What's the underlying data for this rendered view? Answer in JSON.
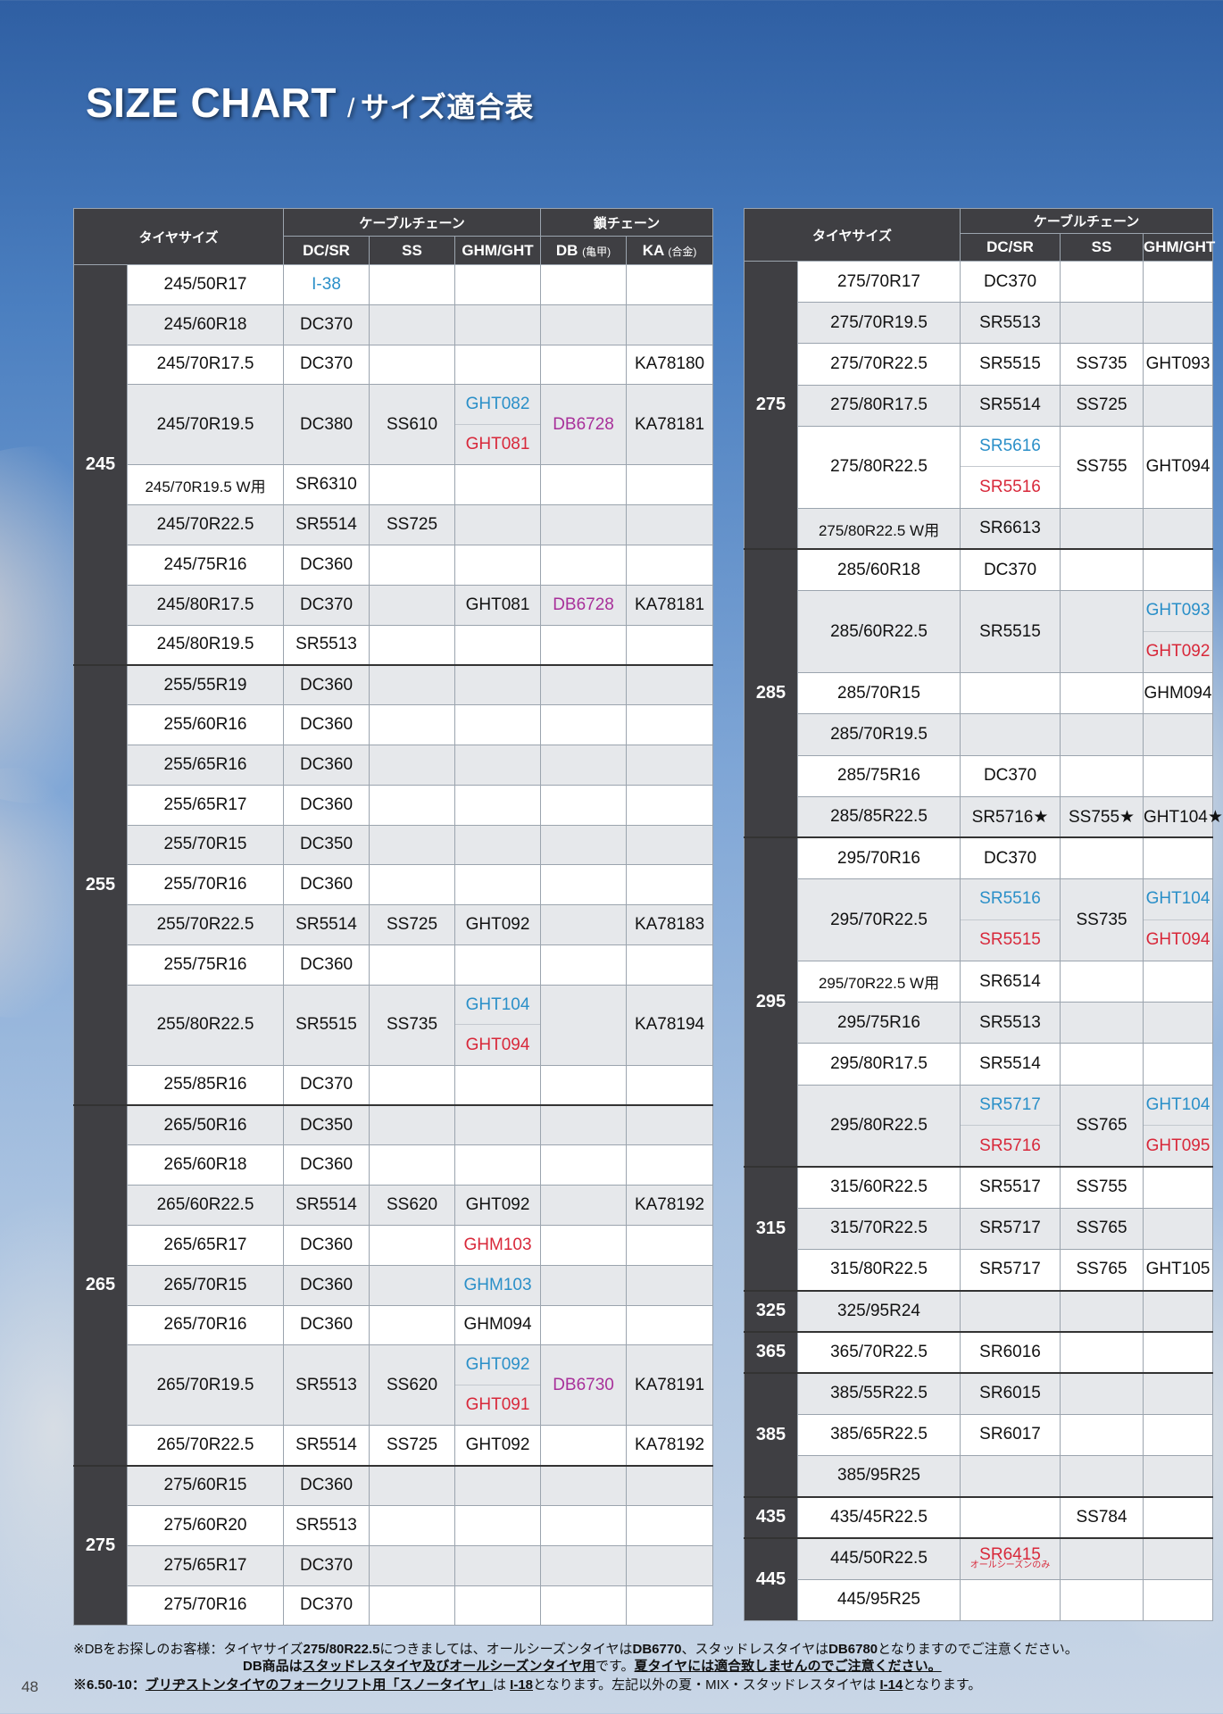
{
  "title": {
    "en": "SIZE CHART",
    "slash": "/",
    "jp": "サイズ適合表"
  },
  "left_table": {
    "header": {
      "tire_size": "タイヤサイズ",
      "cable_group": "ケーブルチェーン",
      "kusari_group": "鎖チェーン",
      "col_dcsr": "DC/SR",
      "col_ss": "SS",
      "col_ghm": "GHM/GHT",
      "col_db": "DB",
      "col_db_sub": "(亀甲)",
      "col_ka": "KA",
      "col_ka_sub": "(合金)"
    },
    "groups": [
      {
        "label": "245",
        "rows": [
          {
            "size": "245/50R17",
            "dc": "I-38"
          },
          {
            "size": "245/60R18",
            "dc": "DC370"
          },
          {
            "size": "245/70R17.5",
            "dc": "DC370",
            "ka": "KA78180"
          },
          {
            "size": "245/70R19.5",
            "dc": "DC380",
            "ss": "SS610",
            "ghm_a": "GHT082",
            "ghm_b": "GHT081",
            "db": "DB6728",
            "ka": "KA78181"
          },
          {
            "size": "245/70R19.5 W用",
            "dc": "SR6310"
          },
          {
            "size": "245/70R22.5",
            "dc": "SR5514",
            "ss": "SS725"
          },
          {
            "size": "245/75R16",
            "dc": "DC360"
          },
          {
            "size": "245/80R17.5",
            "dc": "DC370",
            "ghm": "GHT081",
            "db": "DB6728",
            "ka": "KA78181"
          },
          {
            "size": "245/80R19.5",
            "dc": "SR5513"
          }
        ]
      },
      {
        "label": "255",
        "rows": [
          {
            "size": "255/55R19",
            "dc": "DC360"
          },
          {
            "size": "255/60R16",
            "dc": "DC360"
          },
          {
            "size": "255/65R16",
            "dc": "DC360"
          },
          {
            "size": "255/65R17",
            "dc": "DC360"
          },
          {
            "size": "255/70R15",
            "dc": "DC350"
          },
          {
            "size": "255/70R16",
            "dc": "DC360"
          },
          {
            "size": "255/70R22.5",
            "dc": "SR5514",
            "ss": "SS725",
            "ghm": "GHT092",
            "ka": "KA78183"
          },
          {
            "size": "255/75R16",
            "dc": "DC360"
          },
          {
            "size": "255/80R22.5",
            "dc": "SR5515",
            "ss": "SS735",
            "ghm_a": "GHT104",
            "ghm_b": "GHT094",
            "ka": "KA78194"
          },
          {
            "size": "255/85R16",
            "dc": "DC370"
          }
        ]
      },
      {
        "label": "265",
        "rows": [
          {
            "size": "265/50R16",
            "dc": "DC350"
          },
          {
            "size": "265/60R18",
            "dc": "DC360"
          },
          {
            "size": "265/60R22.5",
            "dc": "SR5514",
            "ss": "SS620",
            "ghm": "GHT092",
            "ka": "KA78192"
          },
          {
            "size": "265/65R17",
            "dc": "DC360",
            "ghm": "GHM103"
          },
          {
            "size": "265/70R15",
            "dc": "DC360",
            "ghm": "GHM103"
          },
          {
            "size": "265/70R16",
            "dc": "DC360",
            "ghm": "GHM094"
          },
          {
            "size": "265/70R19.5",
            "dc": "SR5513",
            "ss": "SS620",
            "ghm_a": "GHT092",
            "ghm_b": "GHT091",
            "db": "DB6730",
            "ka": "KA78191"
          },
          {
            "size": "265/70R22.5",
            "dc": "SR5514",
            "ss": "SS725",
            "ghm": "GHT092",
            "ka": "KA78192"
          }
        ]
      },
      {
        "label": "275",
        "rows": [
          {
            "size": "275/60R15",
            "dc": "DC360"
          },
          {
            "size": "275/60R20",
            "dc": "SR5513"
          },
          {
            "size": "275/65R17",
            "dc": "DC370"
          },
          {
            "size": "275/70R16",
            "dc": "DC370"
          }
        ]
      }
    ]
  },
  "right_table": {
    "header": {
      "tire_size": "タイヤサイズ",
      "cable_group": "ケーブルチェーン",
      "col_dcsr": "DC/SR",
      "col_ss": "SS",
      "col_ghm": "GHM/GHT"
    },
    "groups": [
      {
        "label": "275",
        "rows": [
          {
            "size": "275/70R17",
            "dc": "DC370"
          },
          {
            "size": "275/70R19.5",
            "dc": "SR5513"
          },
          {
            "size": "275/70R22.5",
            "dc": "SR5515",
            "ss": "SS735",
            "ghm": "GHT093"
          },
          {
            "size": "275/80R17.5",
            "dc": "SR5514",
            "ss": "SS725"
          },
          {
            "size": "275/80R22.5",
            "dc_a": "SR5616",
            "dc_b": "SR5516",
            "ss": "SS755",
            "ghm": "GHT094"
          },
          {
            "size": "275/80R22.5 W用",
            "dc": "SR6613"
          }
        ]
      },
      {
        "label": "285",
        "rows": [
          {
            "size": "285/60R18",
            "dc": "DC370"
          },
          {
            "size": "285/60R22.5",
            "dc": "SR5515",
            "ghm_a": "GHT093",
            "ghm_b": "GHT092"
          },
          {
            "size": "285/70R15",
            "ghm": "GHM094"
          },
          {
            "size": "285/70R19.5"
          },
          {
            "size": "285/75R16",
            "dc": "DC370"
          },
          {
            "size": "285/85R22.5",
            "dc": "SR5716★",
            "ss": "SS755★",
            "ghm": "GHT104★"
          }
        ]
      },
      {
        "label": "295",
        "rows": [
          {
            "size": "295/70R16",
            "dc": "DC370"
          },
          {
            "size": "295/70R22.5",
            "dc_a": "SR5516",
            "dc_b": "SR5515",
            "ss": "SS735",
            "ghm_a": "GHT104",
            "ghm_b": "GHT094"
          },
          {
            "size": "295/70R22.5 W用",
            "dc": "SR6514"
          },
          {
            "size": "295/75R16",
            "dc": "SR5513"
          },
          {
            "size": "295/80R17.5",
            "dc": "SR5514"
          },
          {
            "size": "295/80R22.5",
            "dc_a": "SR5717",
            "dc_b": "SR5716",
            "ss": "SS765",
            "ghm_a": "GHT104",
            "ghm_b": "GHT095"
          }
        ]
      },
      {
        "label": "315",
        "rows": [
          {
            "size": "315/60R22.5",
            "dc": "SR5517",
            "ss": "SS755"
          },
          {
            "size": "315/70R22.5",
            "dc": "SR5717",
            "ss": "SS765"
          },
          {
            "size": "315/80R22.5",
            "dc": "SR5717",
            "ss": "SS765",
            "ghm": "GHT105"
          }
        ]
      },
      {
        "label": "325",
        "rows": [
          {
            "size": "325/95R24"
          }
        ]
      },
      {
        "label": "365",
        "rows": [
          {
            "size": "365/70R22.5",
            "dc": "SR6016"
          }
        ]
      },
      {
        "label": "385",
        "rows": [
          {
            "size": "385/55R22.5",
            "dc": "SR6015"
          },
          {
            "size": "385/65R22.5",
            "dc": "SR6017"
          },
          {
            "size": "385/95R25"
          }
        ]
      },
      {
        "label": "435",
        "rows": [
          {
            "size": "435/45R22.5",
            "ss": "SS784"
          }
        ]
      },
      {
        "label": "445",
        "rows": [
          {
            "size": "445/50R22.5",
            "dc": "SR6415",
            "dc_note": "オールシーズンのみ"
          },
          {
            "size": "445/95R25"
          }
        ]
      }
    ]
  },
  "notes": {
    "n1_a": "※DBをお探しのお客様：タイヤサイズ",
    "n1_b": "275/80R22.5",
    "n1_c": "につきましては、オールシーズンタイヤは",
    "n1_d": "DB6770",
    "n1_e": "、スタッドレスタイヤは",
    "n1_f": "DB6780",
    "n1_g": "となりますのでご注意ください。",
    "n2_a": "DB商品は",
    "n2_b": "スタッドレスタイヤ及びオールシーズンタイヤ用",
    "n2_c": "です。",
    "n2_d": "夏タイヤには適合致しませんのでご注意ください。",
    "n3_a": "※6.50-10：",
    "n3_b": "ブリヂストンタイヤのフォークリフト用「スノータイヤ」",
    "n3_c": "は",
    "n3_d": "I-18",
    "n3_e": "となります。左記以外の夏・MIX・スタッドレスタイヤは",
    "n3_f": "I-14",
    "n3_g": "となります。"
  },
  "page_number": "48",
  "colors": {
    "header_bg": "#3f3f43",
    "blue": "#2a8fc8",
    "red": "#d8283a",
    "purple": "#a8309a",
    "row_gray": "#e6e8eb"
  }
}
